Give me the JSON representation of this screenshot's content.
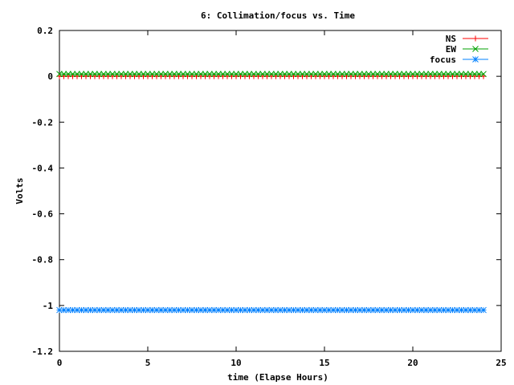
{
  "chart_data": {
    "type": "line",
    "title": "6: Collimation/focus vs. Time",
    "xlabel": "time (Elapse Hours)",
    "ylabel": "Volts",
    "xlim": [
      0,
      25
    ],
    "ylim": [
      -1.2,
      0.2
    ],
    "xticks": [
      0,
      5,
      10,
      15,
      20,
      25
    ],
    "xtick_labels": [
      "0",
      "5",
      "10",
      "15",
      "20",
      "25"
    ],
    "yticks": [
      0.2,
      0,
      -0.2,
      -0.4,
      -0.6,
      -0.8,
      -1,
      -1.2
    ],
    "ytick_labels": [
      "0.2",
      "0",
      "-0.2",
      "-0.4",
      "-0.6",
      "-0.8",
      "-1",
      "-1.2"
    ],
    "grid": false,
    "legend_position": "top-right",
    "x_range": [
      0,
      24
    ],
    "point_count": 97,
    "series": [
      {
        "name": "NS",
        "color": "#ff0000",
        "marker": "plus",
        "value": 0.0
      },
      {
        "name": "EW",
        "color": "#00a000",
        "marker": "cross",
        "value": 0.01
      },
      {
        "name": "focus",
        "color": "#0080ff",
        "marker": "star",
        "value": -1.02
      }
    ]
  }
}
